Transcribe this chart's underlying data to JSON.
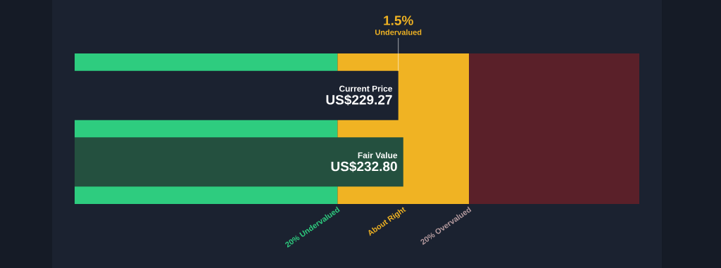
{
  "chart_data": {
    "type": "bar",
    "orientation": "horizontal",
    "categories": [
      "Current Price",
      "Fair Value"
    ],
    "values": [
      229.27,
      232.8
    ],
    "value_labels": [
      "US$229.27",
      "US$232.80"
    ],
    "colors": [
      "#1b2230",
      "#24503f"
    ],
    "xlim": [
      0,
      400
    ],
    "tick_labels": false,
    "bands": [
      {
        "axis": "x",
        "from": 0,
        "to": 186.24,
        "label": "20% Undervalued",
        "color": "#2ecc7f"
      },
      {
        "axis": "x",
        "from": 186.24,
        "to": 279.36,
        "label": "About Right",
        "color": "#f0b323"
      },
      {
        "axis": "x",
        "from": 279.36,
        "to": 400,
        "label": "20% Overvalued",
        "color": "#5a2029"
      }
    ],
    "annotations": [
      {
        "text": "1.5%",
        "x": 229.27
      },
      "Undervalued"
    ]
  }
}
